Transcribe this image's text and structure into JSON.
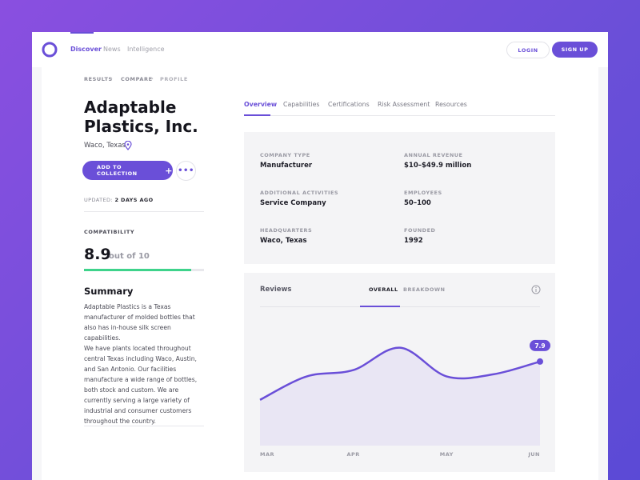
{
  "nav": {
    "links": [
      "Discover",
      "News",
      "Intelligence"
    ],
    "login": "LOGIN",
    "signup": "SIGN UP"
  },
  "breadcrumb": [
    "RESULTS",
    "COMPARE",
    "PROFILE"
  ],
  "company": {
    "name": "Adaptable Plastics, Inc.",
    "location": "Waco, Texas",
    "add_button": "ADD TO COLLECTION",
    "updated_label": "UPDATED:",
    "updated_value": "2 DAYS AGO"
  },
  "compatibility": {
    "label": "COMPATIBILITY",
    "score": 8.9,
    "score_suffix": "out of 10"
  },
  "summary": {
    "title": "Summary",
    "paragraphs": [
      "Adaptable Plastics is a Texas manufacturer of molded bottles that also has in-house silk screen capabilities.",
      "We have plants located throughout central Texas including Waco, Austin, and San Antonio. Our facilities manufacture a wide range of bottles, both stock and custom. We are currently serving a large variety of industrial and consumer customers throughout the country."
    ]
  },
  "tabs": [
    "Overview",
    "Capabilities",
    "Certifications",
    "Risk Assessment",
    "Resources"
  ],
  "facts": [
    {
      "label": "COMPANY TYPE",
      "value": "Manufacturer"
    },
    {
      "label": "ANNUAL REVENUE",
      "value": "$10–$49.9 million"
    },
    {
      "label": "ADDITIONAL ACTIVITIES",
      "value": "Service Company"
    },
    {
      "label": "EMPLOYEES",
      "value": "50–100"
    },
    {
      "label": "HEADQUARTERS",
      "value": "Waco, Texas"
    },
    {
      "label": "FOUNDED",
      "value": "1992"
    }
  ],
  "reviews": {
    "title": "Reviews",
    "tabs": [
      "OVERALL",
      "BREAKDOWN"
    ],
    "chart": {
      "type": "area",
      "categories": [
        "MAR",
        null,
        "APR",
        null,
        "MAY",
        null,
        "JUN"
      ],
      "values": [
        4.3,
        6.5,
        7.1,
        9.2,
        6.5,
        6.7,
        7.9
      ],
      "color": "#6a4fd8"
    }
  }
}
